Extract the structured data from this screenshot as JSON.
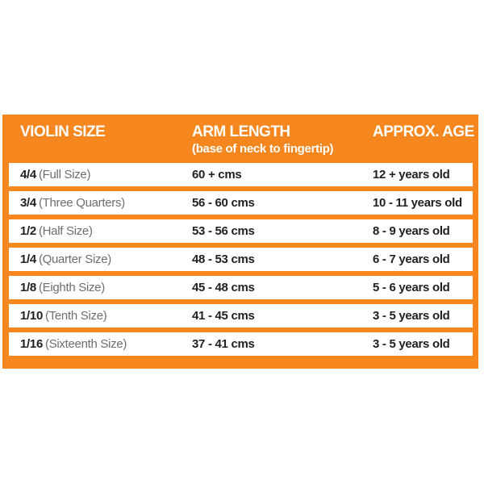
{
  "accent_color": "#F6871F",
  "text_color": "#212121",
  "note_color": "#6D6E71",
  "table": {
    "header": {
      "col1": "VIOLIN SIZE",
      "col2": "ARM LENGTH",
      "col2_sub": "(base of neck to fingertip)",
      "col3": "APPROX. AGE"
    },
    "rows": [
      {
        "size": "4/4",
        "size_note": "(Full Size)",
        "arm": "60 + cms",
        "age": "12 + years old"
      },
      {
        "size": "3/4",
        "size_note": "(Three Quarters)",
        "arm": "56 - 60 cms",
        "age": "10 - 11 years old"
      },
      {
        "size": "1/2",
        "size_note": "(Half Size)",
        "arm": "53 - 56 cms",
        "age": "8 - 9 years old"
      },
      {
        "size": "1/4",
        "size_note": "(Quarter Size)",
        "arm": "48 - 53 cms",
        "age": "6 - 7 years old"
      },
      {
        "size": "1/8",
        "size_note": "(Eighth Size)",
        "arm": "45 - 48 cms",
        "age": "5 - 6 years old"
      },
      {
        "size": "1/10",
        "size_note": "(Tenth Size)",
        "arm": "41 - 45 cms",
        "age": "3 - 5 years old"
      },
      {
        "size": "1/16",
        "size_note": "(Sixteenth Size)",
        "arm": "37 - 41 cms",
        "age": "3 - 5 years old"
      }
    ]
  },
  "chart_data": {
    "type": "table",
    "title": "Violin sizing chart",
    "columns": [
      "VIOLIN SIZE",
      "ARM LENGTH (base of neck to fingertip)",
      "APPROX. AGE"
    ],
    "rows": [
      [
        "4/4 (Full Size)",
        "60 + cms",
        "12 + years old"
      ],
      [
        "3/4 (Three Quarters)",
        "56 - 60 cms",
        "10 - 11 years old"
      ],
      [
        "1/2 (Half Size)",
        "53 - 56 cms",
        "8 - 9 years old"
      ],
      [
        "1/4 (Quarter Size)",
        "48 - 53 cms",
        "6 - 7 years old"
      ],
      [
        "1/8 (Eighth Size)",
        "45 - 48 cms",
        "5 - 6 years old"
      ],
      [
        "1/10 (Tenth Size)",
        "41 - 45 cms",
        "3 - 5 years old"
      ],
      [
        "1/16 (Sixteenth Size)",
        "37 - 41 cms",
        "3 - 5 years old"
      ]
    ],
    "layout": {
      "header_background": "#F6871F",
      "row_background": "#FFFFFF",
      "grid": "off",
      "legend": "none"
    }
  }
}
